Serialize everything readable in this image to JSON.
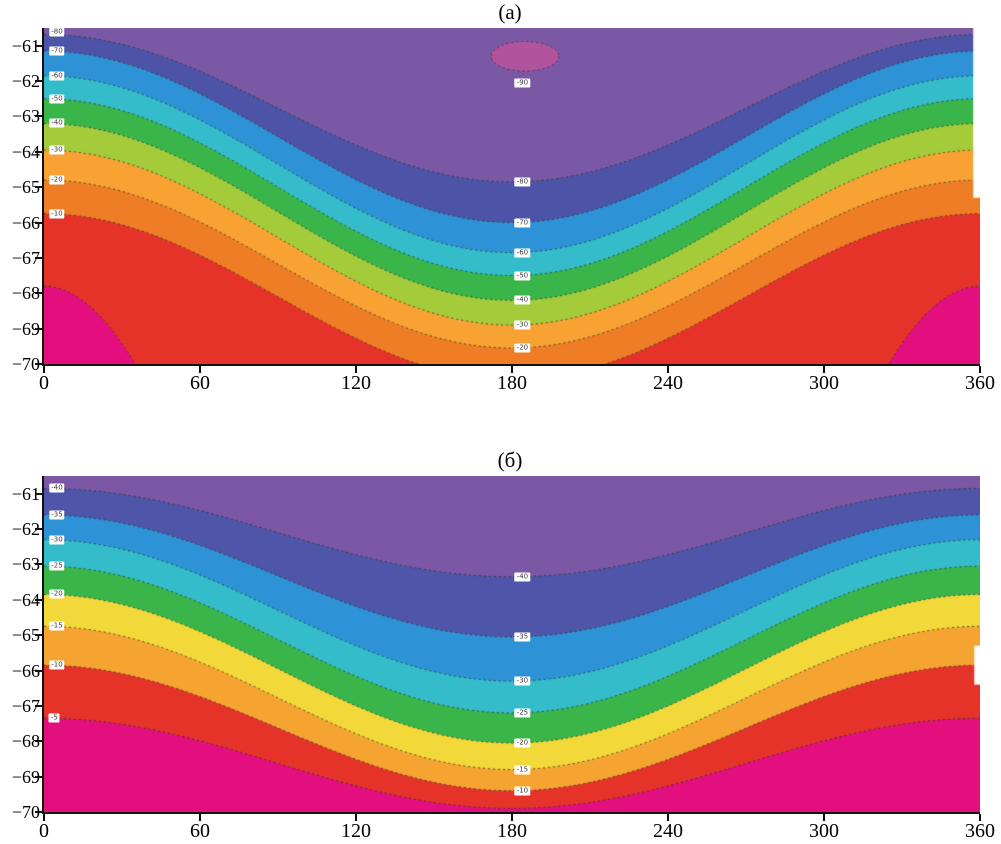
{
  "page": {
    "background": "#ffffff"
  },
  "chart_data": [
    {
      "type": "contour",
      "panel_label": "(а)",
      "xlim": [
        0,
        360
      ],
      "ylim": [
        -70,
        -60.5
      ],
      "x_ticks": [
        0,
        60,
        120,
        180,
        240,
        300,
        360
      ],
      "y_ticks": [
        -61,
        -62,
        -63,
        -64,
        -65,
        -66,
        -67,
        -68,
        -69,
        -70
      ],
      "levels": [
        -90,
        -80,
        -70,
        -60,
        -50,
        -40,
        -30,
        -20,
        -10,
        0
      ],
      "grid": false,
      "legend": false,
      "top_fill": "#7a58a6",
      "contours": [
        {
          "level": -80,
          "y_edge": -60.68,
          "y_center": -64.85,
          "fill_below": "#4d53a6"
        },
        {
          "level": -70,
          "y_edge": -61.15,
          "y_center": -66.0,
          "fill_below": "#2d93d6"
        },
        {
          "level": -60,
          "y_edge": -61.85,
          "y_center": -66.85,
          "fill_below": "#34bcca"
        },
        {
          "level": -50,
          "y_edge": -62.5,
          "y_center": -67.5,
          "fill_below": "#3ab54a"
        },
        {
          "level": -40,
          "y_edge": -63.2,
          "y_center": -68.2,
          "fill_below": "#a3cb3a"
        },
        {
          "level": -30,
          "y_edge": -63.95,
          "y_center": -68.9,
          "fill_below": "#f7a233"
        },
        {
          "level": -20,
          "y_edge": -64.8,
          "y_center": -69.55,
          "fill_below": "#ef7d25"
        },
        {
          "level": -10,
          "y_edge": -65.75,
          "y_center": -70.45,
          "fill_below": "#e6332a"
        },
        {
          "level": 0,
          "y_edge": -67.8,
          "y_center": -92.0,
          "fill_below": "#e40f7e"
        }
      ],
      "blob": {
        "level": -90,
        "cx": 185,
        "cy": -61.3,
        "rx": 13,
        "ry": 0.42,
        "fill": "#b2539e"
      },
      "white_marks": [
        {
          "x0": 357.4,
          "x1": 360,
          "y0": -65.3,
          "y1": -60.5
        }
      ],
      "contour_labels": [
        {
          "text": "-80",
          "x": 5,
          "y": -60.62
        },
        {
          "text": "-70",
          "x": 5,
          "y": -61.15
        },
        {
          "text": "-60",
          "x": 5,
          "y": -61.85
        },
        {
          "text": "-50",
          "x": 5,
          "y": -62.5
        },
        {
          "text": "-40",
          "x": 5,
          "y": -63.2
        },
        {
          "text": "-30",
          "x": 5,
          "y": -63.95
        },
        {
          "text": "-20",
          "x": 5,
          "y": -64.8
        },
        {
          "text": "-10",
          "x": 5,
          "y": -65.75
        },
        {
          "text": "-90",
          "x": 184,
          "y": -62.05
        },
        {
          "text": "-80",
          "x": 184,
          "y": -64.85
        },
        {
          "text": "-70",
          "x": 184,
          "y": -66.0
        },
        {
          "text": "-60",
          "x": 184,
          "y": -66.85
        },
        {
          "text": "-50",
          "x": 184,
          "y": -67.5
        },
        {
          "text": "-40",
          "x": 184,
          "y": -68.2
        },
        {
          "text": "-30",
          "x": 184,
          "y": -68.9
        },
        {
          "text": "-20",
          "x": 184,
          "y": -69.55
        }
      ]
    },
    {
      "type": "contour",
      "panel_label": "(б)",
      "xlim": [
        0,
        360
      ],
      "ylim": [
        -70,
        -60.5
      ],
      "x_ticks": [
        0,
        60,
        120,
        180,
        240,
        300,
        360
      ],
      "y_ticks": [
        -61,
        -62,
        -63,
        -64,
        -65,
        -66,
        -67,
        -68,
        -69,
        -70
      ],
      "levels": [
        -40,
        -35,
        -30,
        -25,
        -20,
        -15,
        -10,
        -5
      ],
      "grid": false,
      "legend": false,
      "top_fill": "#7c57a5",
      "contours": [
        {
          "level": -40,
          "y_edge": -60.85,
          "y_center": -63.35,
          "fill_below": "#4f55a8"
        },
        {
          "level": -35,
          "y_edge": -61.6,
          "y_center": -65.05,
          "fill_below": "#2d93d6"
        },
        {
          "level": -30,
          "y_edge": -62.3,
          "y_center": -66.3,
          "fill_below": "#34bcca"
        },
        {
          "level": -25,
          "y_edge": -63.05,
          "y_center": -67.2,
          "fill_below": "#3ab54a"
        },
        {
          "level": -20,
          "y_edge": -63.85,
          "y_center": -68.05,
          "fill_below": "#f2d838"
        },
        {
          "level": -15,
          "y_edge": -64.75,
          "y_center": -68.8,
          "fill_below": "#f6a431"
        },
        {
          "level": -10,
          "y_edge": -65.85,
          "y_center": -69.4,
          "fill_below": "#e6332a"
        },
        {
          "level": -5,
          "y_edge": -67.35,
          "y_center": -69.9,
          "fill_below": "#e40f7e"
        }
      ],
      "blob": null,
      "white_marks": [
        {
          "x0": 357.8,
          "x1": 360,
          "y0": -66.4,
          "y1": -65.3
        }
      ],
      "contour_labels": [
        {
          "text": "-40",
          "x": 5,
          "y": -60.85
        },
        {
          "text": "-35",
          "x": 5,
          "y": -61.6
        },
        {
          "text": "-30",
          "x": 5,
          "y": -62.3
        },
        {
          "text": "-25",
          "x": 5,
          "y": -63.05
        },
        {
          "text": "-20",
          "x": 5,
          "y": -63.85
        },
        {
          "text": "-15",
          "x": 5,
          "y": -64.75
        },
        {
          "text": "-10",
          "x": 5,
          "y": -65.85
        },
        {
          "text": "-5",
          "x": 4,
          "y": -67.35
        },
        {
          "text": "-40",
          "x": 184,
          "y": -63.35
        },
        {
          "text": "-35",
          "x": 184,
          "y": -65.05
        },
        {
          "text": "-30",
          "x": 184,
          "y": -66.3
        },
        {
          "text": "-25",
          "x": 184,
          "y": -67.2
        },
        {
          "text": "-20",
          "x": 184,
          "y": -68.05
        },
        {
          "text": "-15",
          "x": 184,
          "y": -68.8
        },
        {
          "text": "-10",
          "x": 184,
          "y": -69.4
        }
      ]
    }
  ]
}
